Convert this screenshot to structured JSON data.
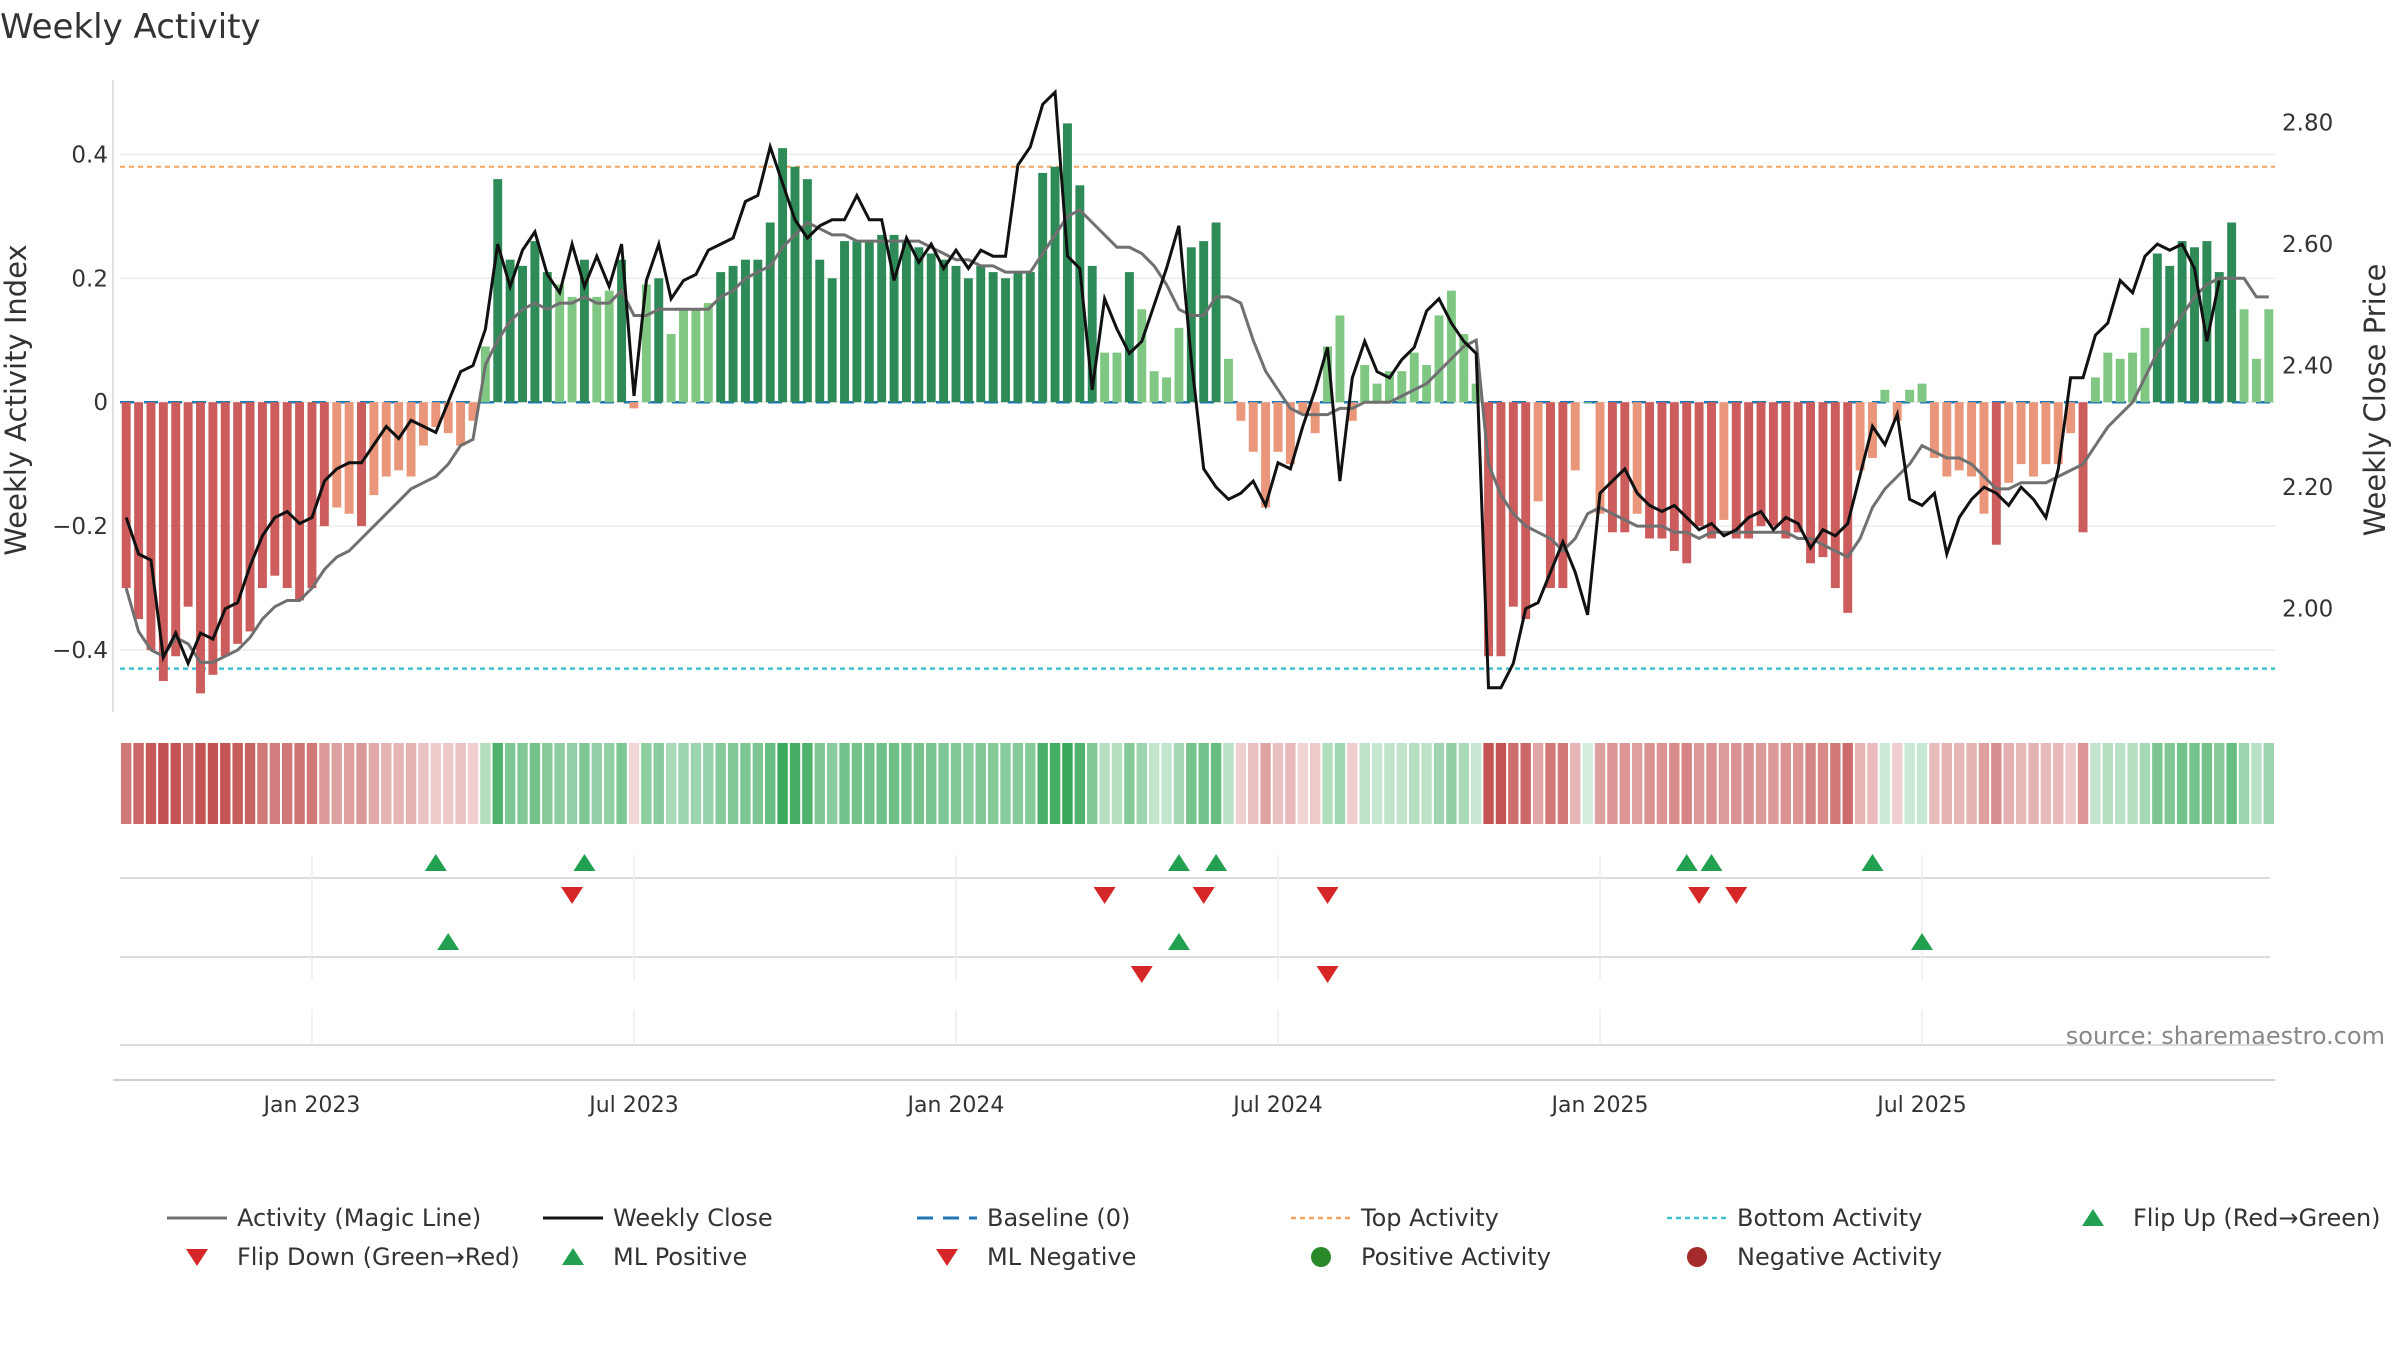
{
  "chart_data": {
    "type": "bar",
    "title": "Weekly Activity",
    "ylabel": "Weekly Activity Index",
    "y2label": "Weekly Close Price",
    "ylim": [
      -0.5,
      0.52
    ],
    "y2lim": [
      1.83,
      2.87
    ],
    "y_ticks": [
      -0.4,
      -0.2,
      0,
      0.2,
      0.4
    ],
    "y_tick_labels": [
      "−0.4",
      "−0.2",
      "0",
      "0.2",
      "0.4"
    ],
    "y2_ticks": [
      2.0,
      2.2,
      2.4,
      2.6,
      2.8
    ],
    "y2_tick_labels": [
      "2.00",
      "2.20",
      "2.40",
      "2.60",
      "2.80"
    ],
    "x_ticks": [
      {
        "label": "Jan 2023",
        "week": 15
      },
      {
        "label": "Jul 2023",
        "week": 41
      },
      {
        "label": "Jan 2024",
        "week": 67
      },
      {
        "label": "Jul 2024",
        "week": 93
      },
      {
        "label": "Jan 2025",
        "week": 119
      },
      {
        "label": "Jul 2025",
        "week": 145
      }
    ],
    "top_activity": 0.38,
    "bottom_activity": -0.43,
    "colors": {
      "pos_strong": "#2e8b57",
      "pos_light": "#81c784",
      "neg_strong": "#cd5c5c",
      "neg_light": "#e9967a",
      "magic_line": "#707070",
      "close_line": "#111111",
      "baseline": "#1f77b4",
      "top": "#f4a460",
      "bottom": "#40c0d0",
      "flip_up": "#22a050",
      "flip_down": "#d62728",
      "pos_dot": "#2a8a2a",
      "neg_dot": "#a52a2a"
    },
    "series": [
      {
        "name": "Weekly Activity Index",
        "values": [
          -0.3,
          -0.35,
          -0.4,
          -0.45,
          -0.41,
          -0.33,
          -0.47,
          -0.44,
          -0.41,
          -0.39,
          -0.37,
          -0.3,
          -0.28,
          -0.3,
          -0.32,
          -0.3,
          -0.2,
          -0.17,
          -0.18,
          -0.2,
          -0.15,
          -0.12,
          -0.11,
          -0.12,
          -0.07,
          -0.04,
          -0.05,
          -0.07,
          -0.03,
          0.09,
          0.36,
          0.23,
          0.22,
          0.26,
          0.21,
          0.19,
          0.17,
          0.23,
          0.17,
          0.18,
          0.23,
          -0.01,
          0.19,
          0.2,
          0.11,
          0.15,
          0.15,
          0.16,
          0.21,
          0.22,
          0.23,
          0.23,
          0.29,
          0.41,
          0.38,
          0.36,
          0.23,
          0.2,
          0.26,
          0.26,
          0.26,
          0.27,
          0.27,
          0.26,
          0.25,
          0.24,
          0.23,
          0.22,
          0.2,
          0.22,
          0.21,
          0.2,
          0.21,
          0.21,
          0.37,
          0.38,
          0.45,
          0.35,
          0.22,
          0.08,
          0.08,
          0.21,
          0.15,
          0.05,
          0.04,
          0.12,
          0.25,
          0.26,
          0.29,
          0.07,
          -0.03,
          -0.08,
          -0.17,
          -0.08,
          -0.1,
          -0.02,
          -0.05,
          0.09,
          0.14,
          -0.03,
          0.06,
          0.03,
          0.05,
          0.05,
          0.08,
          0.06,
          0.14,
          0.18,
          0.11,
          0.03,
          -0.41,
          -0.41,
          -0.33,
          -0.35,
          -0.16,
          -0.3,
          -0.3,
          -0.11,
          0.0,
          -0.18,
          -0.21,
          -0.21,
          -0.18,
          -0.22,
          -0.22,
          -0.24,
          -0.26,
          -0.2,
          -0.22,
          -0.19,
          -0.22,
          -0.22,
          -0.2,
          -0.2,
          -0.22,
          -0.21,
          -0.26,
          -0.25,
          -0.3,
          -0.34,
          -0.11,
          -0.09,
          0.02,
          -0.03,
          0.02,
          0.03,
          -0.09,
          -0.12,
          -0.11,
          -0.12,
          -0.18,
          -0.23,
          -0.13,
          -0.1,
          -0.12,
          -0.1,
          -0.1,
          -0.05,
          -0.21,
          0.04,
          0.08,
          0.07,
          0.08,
          0.12,
          0.24,
          0.22,
          0.26,
          0.25,
          0.26,
          0.21,
          0.29,
          0.15,
          0.07,
          0.15
        ]
      },
      {
        "name": "Activity (Magic Line)",
        "values": [
          -0.3,
          -0.37,
          -0.4,
          -0.41,
          -0.38,
          -0.39,
          -0.42,
          -0.42,
          -0.41,
          -0.4,
          -0.38,
          -0.35,
          -0.33,
          -0.32,
          -0.32,
          -0.3,
          -0.27,
          -0.25,
          -0.24,
          -0.22,
          -0.2,
          -0.18,
          -0.16,
          -0.14,
          -0.13,
          -0.12,
          -0.1,
          -0.07,
          -0.06,
          0.06,
          0.1,
          0.13,
          0.15,
          0.16,
          0.15,
          0.16,
          0.16,
          0.17,
          0.16,
          0.16,
          0.18,
          0.14,
          0.14,
          0.15,
          0.15,
          0.15,
          0.15,
          0.15,
          0.17,
          0.18,
          0.2,
          0.21,
          0.22,
          0.25,
          0.27,
          0.29,
          0.28,
          0.27,
          0.27,
          0.26,
          0.26,
          0.26,
          0.26,
          0.26,
          0.26,
          0.25,
          0.24,
          0.23,
          0.23,
          0.22,
          0.22,
          0.21,
          0.21,
          0.21,
          0.24,
          0.27,
          0.3,
          0.31,
          0.29,
          0.27,
          0.25,
          0.25,
          0.24,
          0.22,
          0.19,
          0.15,
          0.14,
          0.14,
          0.17,
          0.17,
          0.16,
          0.1,
          0.05,
          0.02,
          -0.01,
          -0.02,
          -0.02,
          -0.02,
          -0.01,
          -0.01,
          0.0,
          0.0,
          0.0,
          0.01,
          0.02,
          0.03,
          0.05,
          0.07,
          0.09,
          0.1,
          -0.1,
          -0.15,
          -0.18,
          -0.2,
          -0.21,
          -0.22,
          -0.24,
          -0.22,
          -0.18,
          -0.17,
          -0.18,
          -0.19,
          -0.2,
          -0.2,
          -0.2,
          -0.21,
          -0.21,
          -0.22,
          -0.21,
          -0.21,
          -0.21,
          -0.21,
          -0.21,
          -0.21,
          -0.21,
          -0.22,
          -0.22,
          -0.23,
          -0.24,
          -0.25,
          -0.22,
          -0.17,
          -0.14,
          -0.12,
          -0.1,
          -0.07,
          -0.08,
          -0.09,
          -0.09,
          -0.1,
          -0.12,
          -0.14,
          -0.14,
          -0.13,
          -0.13,
          -0.13,
          -0.12,
          -0.11,
          -0.1,
          -0.07,
          -0.04,
          -0.02,
          0.0,
          0.04,
          0.08,
          0.11,
          0.14,
          0.17,
          0.19,
          0.2,
          0.2,
          0.2,
          0.17,
          0.17
        ]
      },
      {
        "name": "Weekly Close",
        "values": [
          2.15,
          2.09,
          2.08,
          1.92,
          1.96,
          1.91,
          1.96,
          1.95,
          2.0,
          2.01,
          2.07,
          2.12,
          2.15,
          2.16,
          2.14,
          2.15,
          2.21,
          2.23,
          2.24,
          2.24,
          2.27,
          2.3,
          2.28,
          2.31,
          2.3,
          2.29,
          2.34,
          2.39,
          2.4,
          2.46,
          2.6,
          2.53,
          2.59,
          2.62,
          2.55,
          2.52,
          2.6,
          2.53,
          2.58,
          2.53,
          2.6,
          2.35,
          2.54,
          2.6,
          2.51,
          2.54,
          2.55,
          2.59,
          2.6,
          2.61,
          2.67,
          2.68,
          2.76,
          2.7,
          2.64,
          2.61,
          2.63,
          2.64,
          2.64,
          2.68,
          2.64,
          2.64,
          2.54,
          2.61,
          2.57,
          2.6,
          2.56,
          2.59,
          2.56,
          2.59,
          2.58,
          2.58,
          2.73,
          2.76,
          2.83,
          2.85,
          2.58,
          2.56,
          2.36,
          2.51,
          2.46,
          2.42,
          2.44,
          2.5,
          2.56,
          2.63,
          2.41,
          2.23,
          2.2,
          2.18,
          2.19,
          2.21,
          2.17,
          2.24,
          2.23,
          2.3,
          2.36,
          2.43,
          2.21,
          2.38,
          2.44,
          2.39,
          2.38,
          2.41,
          2.43,
          2.49,
          2.51,
          2.47,
          2.44,
          2.42,
          1.87,
          1.87,
          1.91,
          2.0,
          2.01,
          2.06,
          2.11,
          2.06,
          1.99,
          2.19,
          2.21,
          2.23,
          2.19,
          2.17,
          2.16,
          2.17,
          2.15,
          2.13,
          2.14,
          2.12,
          2.13,
          2.15,
          2.16,
          2.13,
          2.15,
          2.14,
          2.1,
          2.13,
          2.12,
          2.14,
          2.22,
          2.3,
          2.27,
          2.32,
          2.18,
          2.17,
          2.19,
          2.09,
          2.15,
          2.18,
          2.2,
          2.19,
          2.17,
          2.2,
          2.18,
          2.15,
          2.23,
          2.38,
          2.38,
          2.45,
          2.47,
          2.54,
          2.52,
          2.58,
          2.6,
          2.59,
          2.6,
          2.56,
          2.44,
          2.54
        ]
      }
    ],
    "flip_up": [
      25,
      37,
      85,
      88,
      126,
      128,
      141
    ],
    "flip_down": [
      36,
      79,
      87,
      97,
      127,
      130
    ],
    "ml_positive": [
      26,
      85,
      145
    ],
    "ml_negative": [
      82,
      97
    ],
    "legend": [
      "Activity (Magic Line)",
      "Weekly Close",
      "Baseline (0)",
      "Top Activity",
      "Bottom Activity",
      "Flip Up (Red→Green)",
      "Flip Down (Green→Red)",
      "ML Positive",
      "ML Negative",
      "Positive Activity",
      "Negative Activity"
    ],
    "source": "source: sharemaestro.com"
  }
}
